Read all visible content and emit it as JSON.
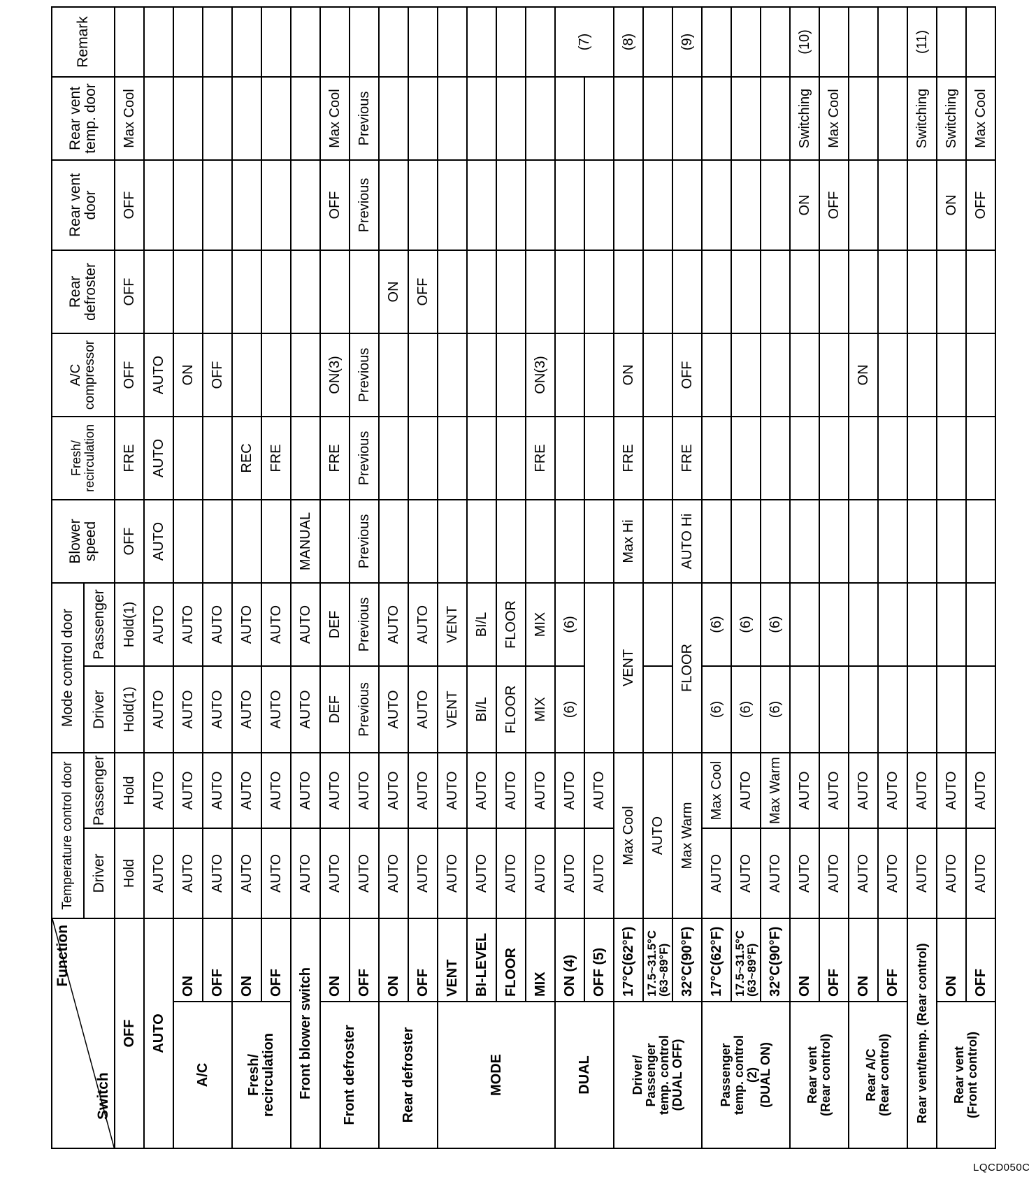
{
  "header": {
    "function": "Function",
    "switch": "Switch",
    "temp_door": "Temperature control door",
    "mode_door": "Mode control door",
    "driver": "Driver",
    "passenger": "Passenger",
    "blower": "Blower\nspeed",
    "fresh": "Fresh/\nrecirculation",
    "ac": "A/C\ncompressor",
    "rear_def": "Rear\ndefroster",
    "rear_vent_door": "Rear vent\ndoor",
    "rear_vent_temp": "Rear vent\ntemp. door",
    "remark": "Remark"
  },
  "groups": [
    {
      "label": "OFF",
      "rows": [
        {
          "sw": "",
          "cells": [
            "Hold",
            "Hold",
            "Hold(1)",
            "Hold(1)",
            "OFF",
            "FRE",
            "OFF",
            "OFF",
            "OFF",
            "Max Cool",
            ""
          ]
        }
      ]
    },
    {
      "label": "AUTO",
      "rows": [
        {
          "sw": "",
          "cells": [
            "AUTO",
            "AUTO",
            "AUTO",
            "AUTO",
            "AUTO",
            "AUTO",
            "AUTO",
            "",
            "",
            "",
            ""
          ]
        }
      ]
    },
    {
      "label": "A/C",
      "rows": [
        {
          "sw": "ON",
          "cells": [
            "AUTO",
            "AUTO",
            "AUTO",
            "AUTO",
            "",
            "",
            "ON",
            "",
            "",
            "",
            ""
          ]
        },
        {
          "sw": "OFF",
          "cells": [
            "AUTO",
            "AUTO",
            "AUTO",
            "AUTO",
            "",
            "",
            "OFF",
            "",
            "",
            "",
            ""
          ]
        }
      ]
    },
    {
      "label": "Fresh/\nrecirculation",
      "rows": [
        {
          "sw": "ON",
          "cells": [
            "AUTO",
            "AUTO",
            "AUTO",
            "AUTO",
            "",
            "REC",
            "",
            "",
            "",
            "",
            ""
          ]
        },
        {
          "sw": "OFF",
          "cells": [
            "AUTO",
            "AUTO",
            "AUTO",
            "AUTO",
            "",
            "FRE",
            "",
            "",
            "",
            "",
            ""
          ]
        }
      ]
    },
    {
      "label": "Front blower switch",
      "rows": [
        {
          "sw": "",
          "cells": [
            "AUTO",
            "AUTO",
            "AUTO",
            "AUTO",
            "MANUAL",
            "",
            "",
            "",
            "",
            "",
            ""
          ]
        }
      ]
    },
    {
      "label": "Front defroster",
      "rows": [
        {
          "sw": "ON",
          "cells": [
            "AUTO",
            "AUTO",
            "DEF",
            "DEF",
            "",
            "FRE",
            "ON(3)",
            "",
            "OFF",
            "Max Cool",
            ""
          ]
        },
        {
          "sw": "OFF",
          "cells": [
            "AUTO",
            "AUTO",
            "Previous",
            "Previous",
            "Previous",
            "Previous",
            "Previous",
            "",
            "Previous",
            "Previous",
            ""
          ]
        }
      ]
    },
    {
      "label": "Rear defroster",
      "rows": [
        {
          "sw": "ON",
          "cells": [
            "AUTO",
            "AUTO",
            "AUTO",
            "AUTO",
            "",
            "",
            "",
            "ON",
            "",
            "",
            ""
          ]
        },
        {
          "sw": "OFF",
          "cells": [
            "AUTO",
            "AUTO",
            "AUTO",
            "AUTO",
            "",
            "",
            "",
            "OFF",
            "",
            "",
            ""
          ]
        }
      ]
    },
    {
      "label": "MODE",
      "rows": [
        {
          "sw": "VENT",
          "cells": [
            "AUTO",
            "AUTO",
            "VENT",
            "VENT",
            "",
            "",
            "",
            "",
            "",
            "",
            ""
          ]
        },
        {
          "sw": "BI-LEVEL",
          "cells": [
            "AUTO",
            "AUTO",
            "BI/L",
            "BI/L",
            "",
            "",
            "",
            "",
            "",
            "",
            ""
          ]
        },
        {
          "sw": "FLOOR",
          "cells": [
            "AUTO",
            "AUTO",
            "FLOOR",
            "FLOOR",
            "",
            "",
            "",
            "",
            "",
            "",
            ""
          ]
        },
        {
          "sw": "MIX",
          "cells": [
            "AUTO",
            "AUTO",
            "MIX",
            "MIX",
            "",
            "FRE",
            "ON(3)",
            "",
            "",
            "",
            ""
          ]
        }
      ]
    },
    {
      "label": "DUAL",
      "rows": [
        {
          "sw": "ON (4)",
          "cells": [
            "AUTO",
            "AUTO",
            "(6)",
            "(6)",
            "",
            "",
            "",
            "",
            "",
            "",
            "(7)"
          ]
        },
        {
          "sw": "OFF (5)",
          "cells": [
            "AUTO",
            "AUTO",
            "",
            null,
            "",
            "",
            "",
            "",
            "",
            "",
            null
          ]
        }
      ]
    },
    {
      "label": "Driver/\nPassenger\ntemp. control\n(DUAL OFF)",
      "rows": [
        {
          "sw": "17°C(62°F)",
          "cells": [
            "Max Cool",
            null,
            "VENT",
            null,
            "Max Hi",
            "FRE",
            "ON",
            "",
            "",
            "",
            "(8)"
          ]
        },
        {
          "sw": "17.5~31.5°C\n(63~89°F)",
          "cells": [
            "AUTO",
            null,
            "",
            "",
            "",
            "",
            "",
            "",
            "",
            "",
            ""
          ]
        },
        {
          "sw": "32°C(90°F)",
          "cells": [
            "Max Warm",
            null,
            "FLOOR",
            null,
            "AUTO Hi",
            "FRE",
            "OFF",
            "",
            "",
            "",
            "(9)"
          ]
        }
      ]
    },
    {
      "label": "Passenger\ntemp. control\n(2)\n(DUAL ON)",
      "rows": [
        {
          "sw": "17°C(62°F)",
          "cells": [
            "AUTO",
            "Max Cool",
            "(6)",
            "(6)",
            "",
            "",
            "",
            "",
            "",
            "",
            ""
          ]
        },
        {
          "sw": "17.5~31.5°C\n(63~89°F)",
          "cells": [
            "AUTO",
            "AUTO",
            "(6)",
            "(6)",
            "",
            "",
            "",
            "",
            "",
            "",
            ""
          ]
        },
        {
          "sw": "32°C(90°F)",
          "cells": [
            "AUTO",
            "Max Warm",
            "(6)",
            "(6)",
            "",
            "",
            "",
            "",
            "",
            "",
            ""
          ]
        }
      ]
    },
    {
      "label": "Rear vent\n(Rear control)",
      "rows": [
        {
          "sw": "ON",
          "cells": [
            "AUTO",
            "AUTO",
            "",
            "",
            "",
            "",
            "",
            "",
            "ON",
            "Switching",
            "(10)"
          ]
        },
        {
          "sw": "OFF",
          "cells": [
            "AUTO",
            "AUTO",
            "",
            "",
            "",
            "",
            "",
            "",
            "OFF",
            "Max Cool",
            ""
          ]
        }
      ]
    },
    {
      "label": "Rear A/C\n(Rear control)",
      "rows": [
        {
          "sw": "ON",
          "cells": [
            "AUTO",
            "AUTO",
            "",
            "",
            "",
            "",
            "ON",
            "",
            "",
            "",
            ""
          ]
        },
        {
          "sw": "OFF",
          "cells": [
            "AUTO",
            "AUTO",
            "",
            "",
            "",
            "",
            "",
            "",
            "",
            "",
            ""
          ]
        }
      ]
    },
    {
      "label": "Rear vent/temp. (Rear control)",
      "rows": [
        {
          "sw": "",
          "cells": [
            "AUTO",
            "AUTO",
            "",
            "",
            "",
            "",
            "",
            "",
            "",
            "Switching",
            "(11)"
          ]
        }
      ]
    },
    {
      "label": "Rear vent\n(Front control)",
      "rows": [
        {
          "sw": "ON",
          "cells": [
            "AUTO",
            "AUTO",
            "",
            "",
            "",
            "",
            "",
            "",
            "ON",
            "Switching",
            ""
          ]
        },
        {
          "sw": "OFF",
          "cells": [
            "AUTO",
            "AUTO",
            "",
            "",
            "",
            "",
            "",
            "",
            "OFF",
            "Max Cool",
            ""
          ]
        }
      ]
    }
  ],
  "figure_code": "LQCD050C"
}
